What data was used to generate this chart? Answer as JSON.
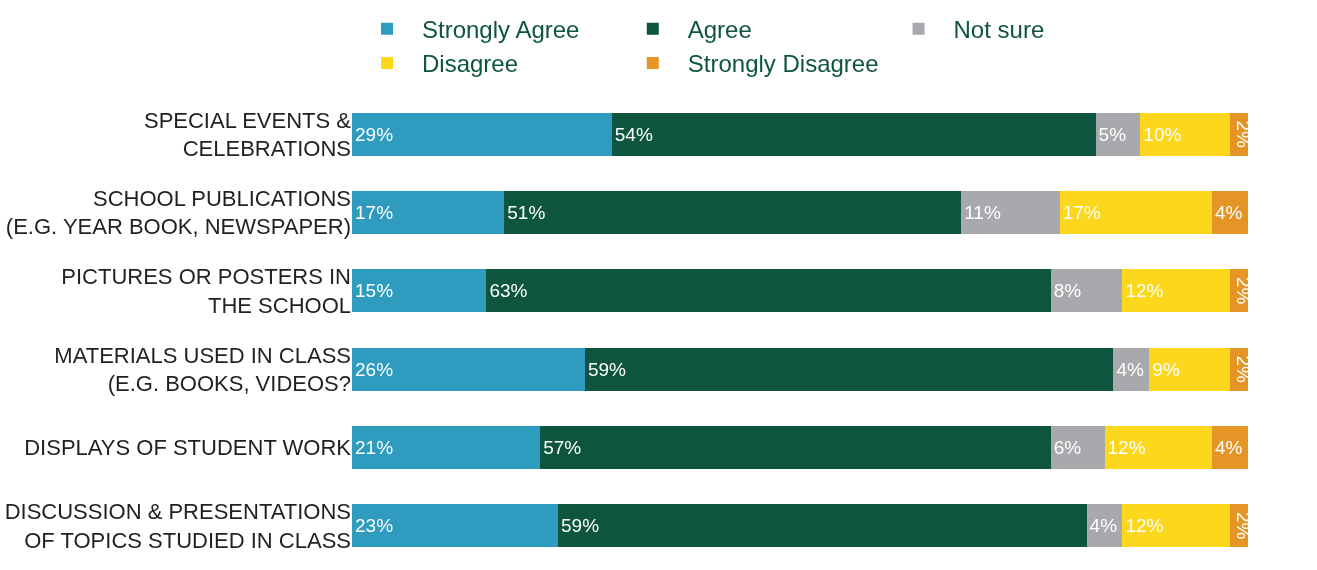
{
  "chart_data": {
    "type": "bar",
    "orientation": "horizontal",
    "stacked": true,
    "legend": "top",
    "categories": [
      "SPECIAL EVENTS &\nCELEBRATIONS",
      "SCHOOL PUBLICATIONS\n(E.G. YEAR BOOK, NEWSPAPER)",
      "PICTURES OR POSTERS IN\nTHE SCHOOL",
      "MATERIALS USED IN CLASS\n(E.G. BOOKS, VIDEOS?",
      "DISPLAYS OF STUDENT WORK",
      "DISCUSSION & PRESENTATIONS\nOF TOPICS STUDIED IN CLASS"
    ],
    "series": [
      {
        "name": "Strongly Agree",
        "color": "#2e9bbf",
        "values": [
          29,
          17,
          15,
          26,
          21,
          23
        ],
        "value_labels": [
          "29%",
          "17%",
          "15%",
          "26%",
          "21%",
          "23%"
        ]
      },
      {
        "name": "Agree",
        "color": "#0d553e",
        "values": [
          54,
          51,
          63,
          59,
          57,
          59
        ],
        "value_labels": [
          "54%",
          "51%",
          "63%",
          "59%",
          "57%",
          "59%"
        ]
      },
      {
        "name": "Not sure",
        "color": "#a7a9ac",
        "values": [
          5,
          11,
          8,
          4,
          6,
          4
        ],
        "value_labels": [
          "5%",
          "11%",
          "8%",
          "4%",
          "6%",
          "4%"
        ]
      },
      {
        "name": "Disagree",
        "color": "#fdd71b",
        "values": [
          10,
          17,
          12,
          9,
          12,
          12
        ],
        "value_labels": [
          "10%",
          "17%",
          "12%",
          "9%",
          "12%",
          "12%"
        ]
      },
      {
        "name": "Strongly Disagree",
        "color": "#e59426",
        "values": [
          2,
          4,
          2,
          2,
          4,
          2
        ],
        "value_labels": [
          "2%",
          "4%",
          "2%",
          "2%",
          "4%",
          "2%"
        ]
      }
    ]
  }
}
